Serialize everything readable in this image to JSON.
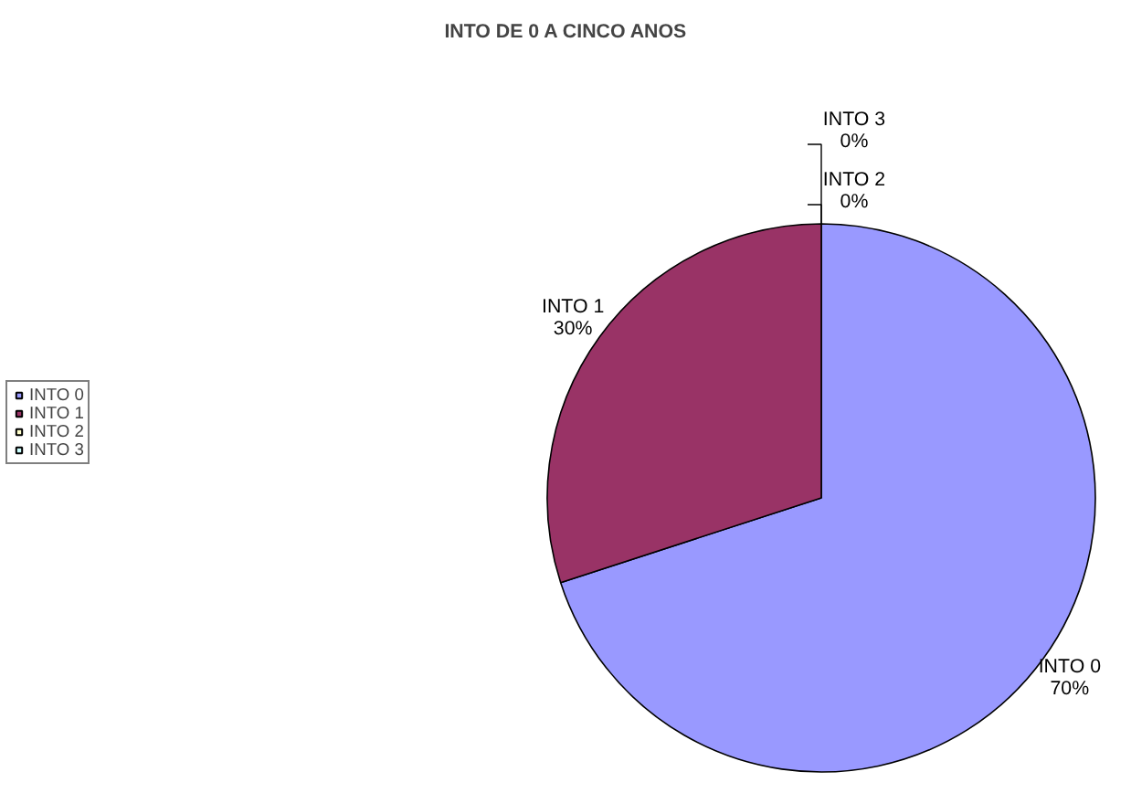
{
  "chart_data": {
    "type": "pie",
    "title": "INTO DE 0 A CINCO ANOS",
    "categories": [
      "INTO 0",
      "INTO 1",
      "INTO 2",
      "INTO 3"
    ],
    "values": [
      70,
      30,
      0,
      0
    ],
    "colors": [
      "#9999ff",
      "#993366",
      "#ffffcc",
      "#ccffff"
    ],
    "value_labels": [
      "70%",
      "30%",
      "0%",
      "0%"
    ],
    "legend": "left"
  }
}
